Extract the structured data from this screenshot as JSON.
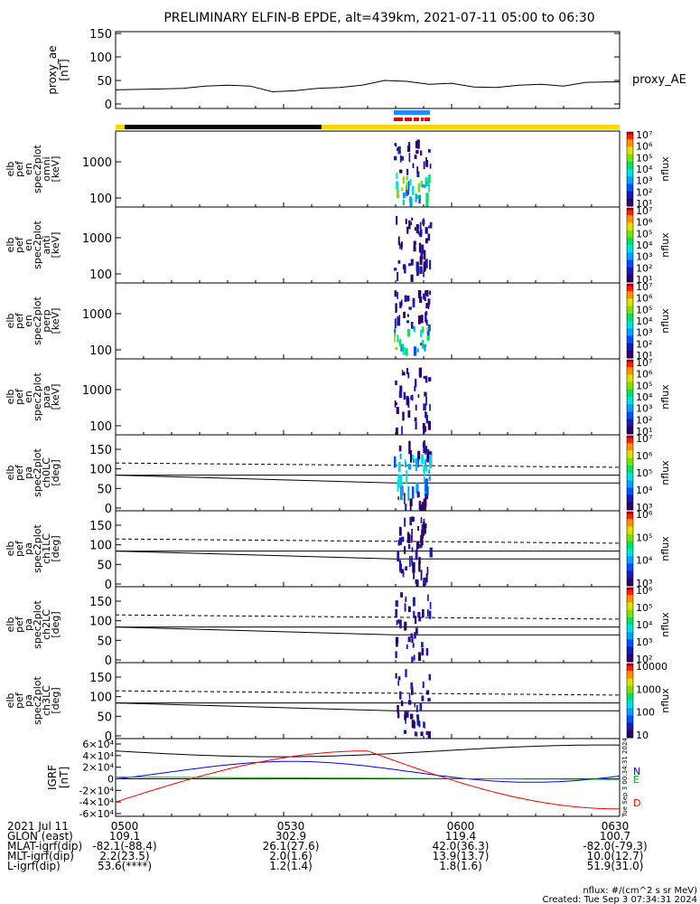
{
  "title": "PRELIMINARY ELFIN-B EPDE, alt=439km, 2021-07-11 05:00 to 06:30",
  "colors": {
    "bar_yellow": "#ffd700",
    "bar_black": "#000000",
    "bar_blue": "#1e8cff",
    "bar_red": "#e00000",
    "bfield_N": "#0000ff",
    "bfield_E": "#00b000",
    "bfield_D": "#ff0000",
    "bfield_H": "#000000"
  },
  "chart_data": [
    {
      "type": "line",
      "ylabel_lines": [
        "proxy_ae",
        "[nT]"
      ],
      "legend": "proxy_AE",
      "ylim": [
        0,
        150
      ],
      "yticks": [
        "0",
        "50",
        "100",
        "150"
      ],
      "x_minutes": [
        0,
        4,
        8,
        12,
        16,
        20,
        24,
        28,
        32,
        36,
        40,
        44,
        48,
        52,
        56,
        60,
        64,
        68,
        72,
        76,
        80,
        84,
        88,
        90
      ],
      "values": [
        30,
        31,
        32,
        33,
        38,
        40,
        38,
        26,
        28,
        33,
        35,
        40,
        50,
        48,
        42,
        44,
        36,
        35,
        40,
        42,
        38,
        46,
        47,
        47
      ]
    },
    {
      "type": "heatmap",
      "ylabel_lines": [
        "elb",
        "pef",
        "en",
        "spec2plot",
        "omni",
        "[keV]"
      ],
      "yticks": [
        "100",
        "1000"
      ],
      "cbar_ticks": [
        "10¹",
        "10²",
        "10³",
        "10⁴",
        "10⁵",
        "10⁶",
        "10⁷"
      ],
      "cbar_label": "nflux",
      "intensity": 1.0
    },
    {
      "type": "heatmap",
      "ylabel_lines": [
        "elb",
        "pef",
        "en",
        "spec2plot",
        "anti",
        "[keV]"
      ],
      "yticks": [
        "100",
        "1000"
      ],
      "cbar_ticks": [
        "10¹",
        "10²",
        "10³",
        "10⁴",
        "10⁵",
        "10⁶",
        "10⁷"
      ],
      "cbar_label": "nflux",
      "intensity": 0.45
    },
    {
      "type": "heatmap",
      "ylabel_lines": [
        "elb",
        "pef",
        "en",
        "spec2plot",
        "perp",
        "[keV]"
      ],
      "yticks": [
        "100",
        "1000"
      ],
      "cbar_ticks": [
        "10¹",
        "10²",
        "10³",
        "10⁴",
        "10⁵",
        "10⁶",
        "10⁷"
      ],
      "cbar_label": "nflux",
      "intensity": 1.0
    },
    {
      "type": "heatmap",
      "ylabel_lines": [
        "elb",
        "pef",
        "en",
        "spec2plot",
        "para",
        "[keV]"
      ],
      "yticks": [
        "100",
        "1000"
      ],
      "cbar_ticks": [
        "10¹",
        "10²",
        "10³",
        "10⁴",
        "10⁵",
        "10⁶",
        "10⁷"
      ],
      "cbar_label": "nflux",
      "intensity": 0.45
    },
    {
      "type": "heatmap",
      "ylabel_lines": [
        "elb",
        "pef",
        "pa",
        "spec2plot",
        "ch0LC",
        "[deg]"
      ],
      "ylim": [
        0,
        180
      ],
      "yticks": [
        "0",
        "50",
        "100",
        "150"
      ],
      "cbar_ticks": [
        "10³",
        "10⁴",
        "10⁵",
        "10⁶",
        "10⁷"
      ],
      "cbar_label": "nflux",
      "intensity": 1.0
    },
    {
      "type": "heatmap",
      "ylabel_lines": [
        "elb",
        "pef",
        "pa",
        "spec2plot",
        "ch1LC",
        "[deg]"
      ],
      "ylim": [
        0,
        180
      ],
      "yticks": [
        "0",
        "50",
        "100",
        "150"
      ],
      "cbar_ticks": [
        "10³",
        "10⁴",
        "10⁵",
        "10⁶"
      ],
      "cbar_label": "nflux",
      "intensity": 0.7
    },
    {
      "type": "heatmap",
      "ylabel_lines": [
        "elb",
        "pef",
        "pa",
        "spec2plot",
        "ch2LC",
        "[deg]"
      ],
      "ylim": [
        0,
        180
      ],
      "yticks": [
        "0",
        "50",
        "100",
        "150"
      ],
      "cbar_ticks": [
        "10²",
        "10³",
        "10⁴",
        "10⁵",
        "10⁶"
      ],
      "cbar_label": "nflux",
      "intensity": 0.5
    },
    {
      "type": "heatmap",
      "ylabel_lines": [
        "elb",
        "pef",
        "pa",
        "spec2plot",
        "ch3LC",
        "[deg]"
      ],
      "ylim": [
        0,
        180
      ],
      "yticks": [
        "0",
        "50",
        "100",
        "150"
      ],
      "cbar_ticks": [
        "10",
        "100",
        "1000",
        "10000"
      ],
      "cbar_label": "nflux",
      "intensity": 0.45
    },
    {
      "type": "line",
      "ylabel_lines": [
        "IGRF",
        "[nT]"
      ],
      "ylim": [
        -60000,
        60000
      ],
      "yticks": [
        "-6×10⁴",
        "-4×10⁴",
        "-2×10⁴",
        "0",
        "2×10⁴",
        "4×10⁴",
        "6×10⁴"
      ],
      "series_labels": [
        "N",
        "E",
        "D"
      ],
      "side_note": "Tue Sep  3 00:34:31 2024"
    }
  ],
  "xaxis": {
    "ticks": [
      "0500",
      "0530",
      "0600",
      "0630"
    ],
    "rows": [
      {
        "label": "2021 Jul 11",
        "values": [
          "0500",
          "0530",
          "0600",
          "0630"
        ]
      },
      {
        "label": "GLON (east)",
        "values": [
          "109.1",
          "302.9",
          "119.4",
          "100.7"
        ]
      },
      {
        "label": "MLAT-igrf(dip)",
        "values": [
          "-82.1(-88.4)",
          "26.1(27.6)",
          "42.0(36.3)",
          "-82.0(-79.3)"
        ]
      },
      {
        "label": "MLT-igrf(dip)",
        "values": [
          "2.2(23.5)",
          "2.0(1.6)",
          "13.9(13.7)",
          "10.0(12.7)"
        ]
      },
      {
        "label": "L-igrf(dip)",
        "values": [
          "53.6(****)",
          "1.2(1.4)",
          "1.8(1.6)",
          "51.9(31.0)"
        ]
      }
    ]
  },
  "footer": {
    "units": "nflux: #/(cm^2 s sr MeV)",
    "created": "Created: Tue Sep  3 07:34:31 2024"
  }
}
